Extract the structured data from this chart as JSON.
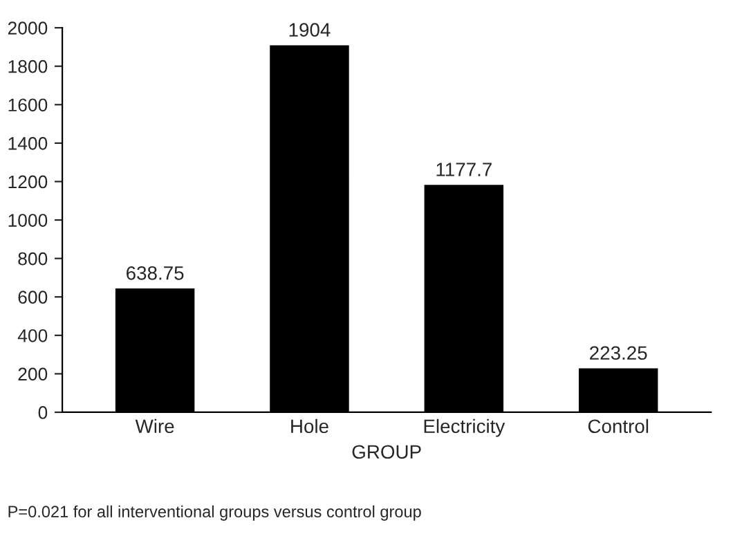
{
  "chart_data": {
    "type": "bar",
    "xlabel": "GROUP",
    "categories": [
      "Wire",
      "Hole",
      "Electricity",
      "Control"
    ],
    "values": [
      638.75,
      1904,
      1177.7,
      223.25
    ],
    "color": "#000000",
    "ylim": [
      0,
      2000
    ],
    "yticks": [
      0,
      200,
      400,
      600,
      800,
      1000,
      1200,
      1400,
      1600,
      1800,
      2000
    ],
    "data_labels": true,
    "grid": false,
    "legend": false,
    "annotations": [
      "P=0.021 for all interventional groups versus control group"
    ]
  }
}
